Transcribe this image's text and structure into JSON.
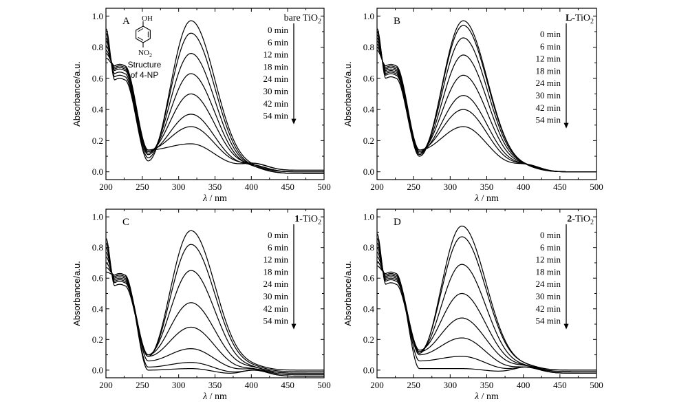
{
  "figure": {
    "x_label_symbol": "λ",
    "x_label_unit": " / nm",
    "y_label": "Absorbance/a.u.",
    "structure_label_lines": [
      "Structure",
      "of 4-NP"
    ],
    "molecule": {
      "top_group": "OH",
      "bottom_group": "NO",
      "bottom_sub": "2"
    }
  },
  "chart_data": [
    {
      "type": "line",
      "panel_letter": "A",
      "catalyst_prefix": "bare ",
      "catalyst_bold": "",
      "catalyst_suffix": "TiO",
      "catalyst_sub": "2",
      "times": [
        "0 min",
        "6 min",
        "12 min",
        "18 min",
        "24 min",
        "30 min",
        "42 min",
        "54 min"
      ],
      "xlim": [
        200,
        500
      ],
      "ylim": [
        -0.05,
        1.05
      ],
      "xticks": [
        200,
        250,
        300,
        350,
        400,
        450,
        500
      ],
      "yticks": [
        0.0,
        0.2,
        0.4,
        0.6,
        0.8,
        1.0
      ],
      "peak_x": 317,
      "peaks": [
        0.97,
        0.89,
        0.76,
        0.63,
        0.5,
        0.37,
        0.29,
        0.18
      ],
      "start_values": [
        0.92,
        0.89,
        0.86,
        0.84,
        0.81,
        0.78,
        0.76,
        0.73
      ],
      "shoulder_values": [
        0.59,
        0.61,
        0.63,
        0.65,
        0.66,
        0.67,
        0.68,
        0.68
      ],
      "min_values": [
        0.07,
        0.09,
        0.11,
        0.12,
        0.13,
        0.13,
        0.14,
        0.14
      ],
      "tail_values": [
        0.0,
        -0.01,
        -0.01,
        -0.01,
        0.0,
        0.0,
        0.01,
        0.01
      ]
    },
    {
      "type": "line",
      "panel_letter": "B",
      "catalyst_prefix": "",
      "catalyst_bold": "L-",
      "catalyst_suffix": "TiO",
      "catalyst_sub": "2",
      "times": [
        "0 min",
        "6 min",
        "12 min",
        "18 min",
        "24 min",
        "30 min",
        "42 min",
        "54 min"
      ],
      "xlim": [
        200,
        500
      ],
      "ylim": [
        -0.05,
        1.05
      ],
      "xticks": [
        200,
        250,
        300,
        350,
        400,
        450,
        500
      ],
      "yticks": [
        0.0,
        0.2,
        0.4,
        0.6,
        0.8,
        1.0
      ],
      "peak_x": 318,
      "peaks": [
        0.97,
        0.94,
        0.86,
        0.75,
        0.62,
        0.49,
        0.4,
        0.29
      ],
      "start_values": [
        0.92,
        0.9,
        0.88,
        0.86,
        0.84,
        0.82,
        0.8,
        0.78
      ],
      "shoulder_values": [
        0.6,
        0.62,
        0.63,
        0.64,
        0.65,
        0.66,
        0.67,
        0.68
      ],
      "min_values": [
        0.1,
        0.11,
        0.12,
        0.12,
        0.13,
        0.13,
        0.14,
        0.14
      ],
      "tail_values": [
        0.0,
        0.0,
        0.0,
        0.0,
        0.0,
        0.0,
        0.0,
        0.0
      ]
    },
    {
      "type": "line",
      "panel_letter": "C",
      "catalyst_prefix": "",
      "catalyst_bold": "1-",
      "catalyst_suffix": "TiO",
      "catalyst_sub": "2",
      "times": [
        "0 min",
        "6 min",
        "12 min",
        "18 min",
        "24 min",
        "30 min",
        "42 min",
        "54 min"
      ],
      "xlim": [
        200,
        500
      ],
      "ylim": [
        -0.05,
        1.05
      ],
      "xticks": [
        200,
        250,
        300,
        350,
        400,
        450,
        500
      ],
      "yticks": [
        0.0,
        0.2,
        0.4,
        0.6,
        0.8,
        1.0
      ],
      "peak_x": 317,
      "peaks": [
        0.91,
        0.82,
        0.65,
        0.44,
        0.28,
        0.14,
        0.05,
        0.01
      ],
      "start_values": [
        0.86,
        0.83,
        0.8,
        0.77,
        0.74,
        0.7,
        0.67,
        0.64
      ],
      "shoulder_values": [
        0.55,
        0.57,
        0.58,
        0.59,
        0.6,
        0.61,
        0.62,
        0.62
      ],
      "min_values": [
        0.09,
        0.09,
        0.1,
        0.1,
        0.09,
        0.06,
        0.02,
        0.0
      ],
      "tail_values": [
        0.0,
        -0.01,
        -0.02,
        -0.02,
        -0.03,
        -0.03,
        -0.04,
        -0.04
      ]
    },
    {
      "type": "line",
      "panel_letter": "D",
      "catalyst_prefix": "",
      "catalyst_bold": "2-",
      "catalyst_suffix": "TiO",
      "catalyst_sub": "2",
      "times": [
        "0 min",
        "6 min",
        "12 min",
        "18 min",
        "24 min",
        "30 min",
        "42 min",
        "54 min"
      ],
      "xlim": [
        200,
        500
      ],
      "ylim": [
        -0.05,
        1.05
      ],
      "xticks": [
        200,
        250,
        300,
        350,
        400,
        450,
        500
      ],
      "yticks": [
        0.0,
        0.2,
        0.4,
        0.6,
        0.8,
        1.0
      ],
      "peak_x": 316,
      "peaks": [
        0.94,
        0.87,
        0.69,
        0.5,
        0.34,
        0.21,
        0.09,
        0.01
      ],
      "start_values": [
        0.89,
        0.86,
        0.83,
        0.8,
        0.77,
        0.74,
        0.71,
        0.68
      ],
      "shoulder_values": [
        0.56,
        0.58,
        0.59,
        0.6,
        0.61,
        0.62,
        0.62,
        0.63
      ],
      "min_values": [
        0.11,
        0.12,
        0.12,
        0.13,
        0.12,
        0.1,
        0.06,
        0.01
      ],
      "tail_values": [
        0.0,
        0.0,
        -0.01,
        -0.01,
        -0.01,
        -0.02,
        -0.02,
        -0.02
      ]
    }
  ]
}
